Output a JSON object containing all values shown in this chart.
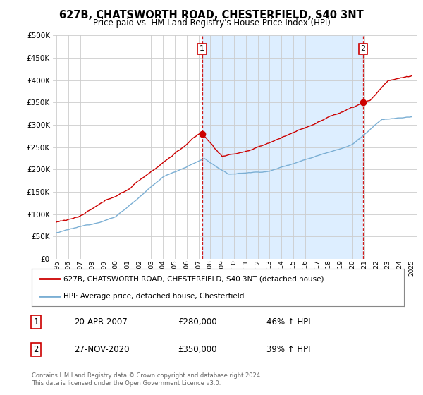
{
  "title": "627B, CHATSWORTH ROAD, CHESTERFIELD, S40 3NT",
  "subtitle": "Price paid vs. HM Land Registry's House Price Index (HPI)",
  "property_label": "627B, CHATSWORTH ROAD, CHESTERFIELD, S40 3NT (detached house)",
  "hpi_label": "HPI: Average price, detached house, Chesterfield",
  "property_color": "#cc0000",
  "hpi_color": "#7bafd4",
  "shade_color": "#ddeeff",
  "background_color": "#ffffff",
  "grid_color": "#cccccc",
  "ylim": [
    0,
    500000
  ],
  "yticks": [
    0,
    50000,
    100000,
    150000,
    200000,
    250000,
    300000,
    350000,
    400000,
    450000,
    500000
  ],
  "sale1_x": 2007.3,
  "sale1_y": 280000,
  "sale1_label": "1",
  "sale2_x": 2020.9,
  "sale2_y": 350000,
  "sale2_label": "2",
  "footer_line1": "Contains HM Land Registry data © Crown copyright and database right 2024.",
  "footer_line2": "This data is licensed under the Open Government Licence v3.0.",
  "table_row1": [
    "1",
    "20-APR-2007",
    "£280,000",
    "46% ↑ HPI"
  ],
  "table_row2": [
    "2",
    "27-NOV-2020",
    "£350,000",
    "39% ↑ HPI"
  ],
  "xlim_left": 1994.7,
  "xlim_right": 2025.5
}
